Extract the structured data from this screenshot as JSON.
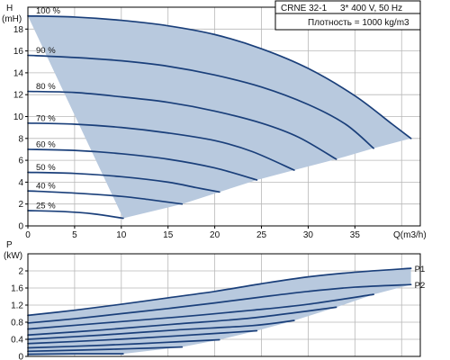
{
  "info_box": {
    "model": "CRNE 32-1",
    "supply": "3* 400 V, 50 Hz",
    "density": "Плотность = 1000 kg/m3"
  },
  "colors": {
    "area_fill": "#b8c9de",
    "curve": "#1a3f7a",
    "grid": "#b8b8b8",
    "axis": "#000000"
  },
  "chart_data": [
    {
      "type": "line",
      "name": "head",
      "xlabel": "Q(m3/h)",
      "ylabel_line1": "H",
      "ylabel_line2": "(mH)",
      "xlim": [
        0,
        42
      ],
      "ylim": [
        0,
        20
      ],
      "x_ticks": [
        0,
        5,
        10,
        15,
        20,
        25,
        30,
        35
      ],
      "y_ticks": [
        0,
        2,
        4,
        6,
        8,
        10,
        12,
        14,
        16,
        18
      ],
      "grid": true,
      "operating_area": {
        "upper": [
          [
            0,
            19.2
          ],
          [
            10,
            18.8
          ],
          [
            20,
            17.5
          ],
          [
            25,
            16.2
          ],
          [
            30,
            14.4
          ],
          [
            35,
            11.9
          ],
          [
            37,
            10.6
          ],
          [
            39,
            9.3
          ],
          [
            41,
            8.0
          ]
        ],
        "lower": [
          [
            41,
            8.0
          ],
          [
            37,
            7.1
          ],
          [
            33,
            6.1
          ],
          [
            28.5,
            5.1
          ],
          [
            24.5,
            4.2
          ],
          [
            20.5,
            3.1
          ],
          [
            16.5,
            2.0
          ],
          [
            10.2,
            0.7
          ]
        ]
      },
      "series": [
        {
          "label": "100 %",
          "points": [
            [
              0,
              19.2
            ],
            [
              5,
              19.1
            ],
            [
              10,
              18.8
            ],
            [
              15,
              18.3
            ],
            [
              20,
              17.5
            ],
            [
              25,
              16.2
            ],
            [
              30,
              14.4
            ],
            [
              35,
              11.9
            ],
            [
              39,
              9.3
            ],
            [
              41,
              8.0
            ]
          ]
        },
        {
          "label": "90 %",
          "points": [
            [
              0,
              15.6
            ],
            [
              5,
              15.4
            ],
            [
              10,
              15.1
            ],
            [
              15,
              14.6
            ],
            [
              20,
              13.8
            ],
            [
              25,
              12.7
            ],
            [
              30,
              11.1
            ],
            [
              34,
              9.3
            ],
            [
              37,
              7.1
            ]
          ]
        },
        {
          "label": "80 %",
          "points": [
            [
              0,
              12.3
            ],
            [
              5,
              12.2
            ],
            [
              10,
              11.8
            ],
            [
              15,
              11.3
            ],
            [
              20,
              10.5
            ],
            [
              25,
              9.4
            ],
            [
              29,
              8.1
            ],
            [
              33,
              6.1
            ]
          ]
        },
        {
          "label": "70 %",
          "points": [
            [
              0,
              9.4
            ],
            [
              5,
              9.3
            ],
            [
              10,
              9.0
            ],
            [
              15,
              8.5
            ],
            [
              20,
              7.8
            ],
            [
              24,
              6.8
            ],
            [
              28.5,
              5.1
            ]
          ]
        },
        {
          "label": "60 %",
          "points": [
            [
              0,
              7.0
            ],
            [
              5,
              6.9
            ],
            [
              10,
              6.6
            ],
            [
              15,
              6.1
            ],
            [
              20,
              5.3
            ],
            [
              24.5,
              4.2
            ]
          ]
        },
        {
          "label": "50 %",
          "points": [
            [
              0,
              4.9
            ],
            [
              5,
              4.8
            ],
            [
              10,
              4.5
            ],
            [
              15,
              4.0
            ],
            [
              18,
              3.5
            ],
            [
              20.5,
              3.1
            ]
          ]
        },
        {
          "label": "40 %",
          "points": [
            [
              0,
              3.2
            ],
            [
              5,
              3.0
            ],
            [
              10,
              2.7
            ],
            [
              13,
              2.4
            ],
            [
              16.5,
              2.0
            ]
          ]
        },
        {
          "label": "25 %",
          "points": [
            [
              0,
              1.4
            ],
            [
              4,
              1.3
            ],
            [
              7,
              1.1
            ],
            [
              10.2,
              0.7
            ]
          ]
        }
      ]
    },
    {
      "type": "line",
      "name": "power",
      "xlabel": "",
      "ylabel_line1": "P",
      "ylabel_line2": "(kW)",
      "xlim": [
        0,
        42
      ],
      "ylim": [
        0,
        2.4
      ],
      "y_ticks": [
        0,
        0.4,
        0.8,
        1.2,
        1.6,
        2.0
      ],
      "y_tick_labels": [
        "0",
        "0.4",
        "0.8",
        "1.2",
        "1.6",
        "2"
      ],
      "grid": true,
      "operating_area": {
        "upper": [
          [
            0,
            0.96
          ],
          [
            5,
            1.08
          ],
          [
            10,
            1.22
          ],
          [
            15,
            1.37
          ],
          [
            20,
            1.52
          ],
          [
            25,
            1.7
          ],
          [
            30,
            1.86
          ],
          [
            35,
            1.97
          ],
          [
            41,
            2.06
          ]
        ],
        "lower": [
          [
            41,
            1.68
          ],
          [
            37,
            1.45
          ],
          [
            33,
            1.15
          ],
          [
            28.5,
            0.84
          ],
          [
            24.5,
            0.6
          ],
          [
            20.5,
            0.39
          ],
          [
            16.5,
            0.22
          ],
          [
            10.2,
            0.06
          ],
          [
            0,
            0.02
          ]
        ]
      },
      "series": [
        {
          "label": "P1",
          "points": [
            [
              0,
              0.96
            ],
            [
              5,
              1.08
            ],
            [
              10,
              1.22
            ],
            [
              15,
              1.37
            ],
            [
              20,
              1.52
            ],
            [
              25,
              1.7
            ],
            [
              30,
              1.86
            ],
            [
              35,
              1.97
            ],
            [
              41,
              2.06
            ]
          ]
        },
        {
          "label": "P2",
          "points": [
            [
              0,
              0.78
            ],
            [
              5,
              0.88
            ],
            [
              10,
              1.0
            ],
            [
              15,
              1.12
            ],
            [
              20,
              1.25
            ],
            [
              25,
              1.39
            ],
            [
              30,
              1.52
            ],
            [
              35,
              1.62
            ],
            [
              41,
              1.68
            ]
          ]
        },
        {
          "label": "",
          "points": [
            [
              0,
              0.64
            ],
            [
              8,
              0.78
            ],
            [
              16,
              0.92
            ],
            [
              24,
              1.08
            ],
            [
              30,
              1.22
            ],
            [
              37,
              1.45
            ]
          ]
        },
        {
          "label": "",
          "points": [
            [
              0,
              0.5
            ],
            [
              8,
              0.62
            ],
            [
              16,
              0.76
            ],
            [
              24,
              0.9
            ],
            [
              33,
              1.15
            ]
          ]
        },
        {
          "label": "",
          "points": [
            [
              0,
              0.4
            ],
            [
              8,
              0.5
            ],
            [
              16,
              0.62
            ],
            [
              24,
              0.72
            ],
            [
              28.5,
              0.84
            ]
          ]
        },
        {
          "label": "",
          "points": [
            [
              0,
              0.3
            ],
            [
              8,
              0.38
            ],
            [
              16,
              0.48
            ],
            [
              24.5,
              0.6
            ]
          ]
        },
        {
          "label": "",
          "points": [
            [
              0,
              0.2
            ],
            [
              8,
              0.26
            ],
            [
              14,
              0.32
            ],
            [
              20.5,
              0.39
            ]
          ]
        },
        {
          "label": "",
          "points": [
            [
              0,
              0.12
            ],
            [
              6,
              0.15
            ],
            [
              11,
              0.18
            ],
            [
              16.5,
              0.22
            ]
          ]
        },
        {
          "label": "",
          "points": [
            [
              0,
              0.05
            ],
            [
              5,
              0.06
            ],
            [
              10.2,
              0.06
            ]
          ]
        }
      ]
    }
  ]
}
